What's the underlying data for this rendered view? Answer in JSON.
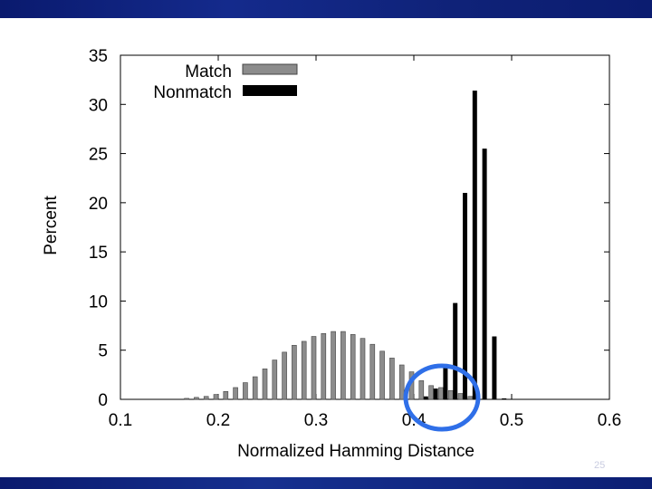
{
  "slide_number": "25",
  "colors": {
    "match": "#8c8c8c",
    "nonmatch": "#000000",
    "highlight_circle": "#2f6fe8",
    "band": "#0f2278"
  },
  "chart_data": {
    "type": "bar",
    "title": "",
    "xlabel": "Normalized Hamming Distance",
    "ylabel": "Percent",
    "xlim": [
      0.1,
      0.6
    ],
    "ylim": [
      0,
      35
    ],
    "xticks": [
      "0.1",
      "0.2",
      "0.3",
      "0.4",
      "0.5",
      "0.6"
    ],
    "yticks": [
      "0",
      "5",
      "10",
      "15",
      "20",
      "25",
      "30",
      "35"
    ],
    "legend_position": "top-left",
    "grid": false,
    "series": [
      {
        "name": "Match",
        "x": [
          0.17,
          0.18,
          0.19,
          0.2,
          0.21,
          0.22,
          0.23,
          0.24,
          0.25,
          0.26,
          0.27,
          0.28,
          0.29,
          0.3,
          0.31,
          0.32,
          0.33,
          0.34,
          0.35,
          0.36,
          0.37,
          0.38,
          0.39,
          0.4,
          0.41,
          0.42,
          0.43,
          0.44,
          0.45,
          0.46
        ],
        "values": [
          0.1,
          0.2,
          0.3,
          0.5,
          0.8,
          1.2,
          1.7,
          2.3,
          3.1,
          4.0,
          4.8,
          5.5,
          5.9,
          6.4,
          6.7,
          6.9,
          6.9,
          6.6,
          6.2,
          5.6,
          4.9,
          4.2,
          3.5,
          2.8,
          1.9,
          1.4,
          1.2,
          0.9,
          0.6,
          0.3
        ]
      },
      {
        "name": "Nonmatch",
        "x": [
          0.41,
          0.42,
          0.43,
          0.44,
          0.45,
          0.46,
          0.47,
          0.48,
          0.49
        ],
        "values": [
          0.3,
          1.1,
          3.2,
          9.8,
          21.0,
          31.4,
          25.5,
          6.4,
          0.1
        ]
      }
    ],
    "annotation": "highlight-circle"
  }
}
